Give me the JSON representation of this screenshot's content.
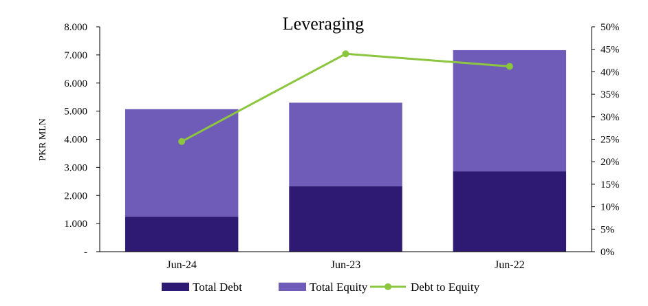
{
  "chart_data": {
    "type": "bar",
    "title": "Leveraging",
    "ylabel": "PKR MLN",
    "categories": [
      "Jun-24",
      "Jun-23",
      "Jun-22"
    ],
    "y_left": {
      "range": [
        0,
        8000
      ],
      "ticks": [
        0,
        1000,
        2000,
        3000,
        4000,
        5000,
        6000,
        7000,
        8000
      ],
      "tick_labels": [
        "-",
        "1.000",
        "2.000",
        "3.000",
        "4.000",
        "5.000",
        "6.000",
        "7.000",
        "8.000"
      ]
    },
    "y_right": {
      "range": [
        0,
        50
      ],
      "ticks": [
        0,
        5,
        10,
        15,
        20,
        25,
        30,
        35,
        40,
        45,
        50
      ],
      "tick_labels": [
        "0%",
        "5%",
        "10%",
        "15%",
        "20%",
        "25%",
        "30%",
        "35%",
        "40%",
        "45%",
        "50%"
      ]
    },
    "series": [
      {
        "name": "Total Debt",
        "type": "bar-stacked",
        "axis": "left",
        "color": "#2e1a73",
        "values": [
          1250,
          2330,
          2860
        ]
      },
      {
        "name": "Total Equity",
        "type": "bar-stacked",
        "axis": "left",
        "color": "#6f5bb8",
        "values": [
          3820,
          2970,
          4310
        ]
      },
      {
        "name": "Debt to Equity",
        "type": "line",
        "axis": "right",
        "color": "#8cc63f",
        "values": [
          24.5,
          44,
          41.2
        ]
      }
    ],
    "legend_position": "bottom",
    "grid": false
  }
}
